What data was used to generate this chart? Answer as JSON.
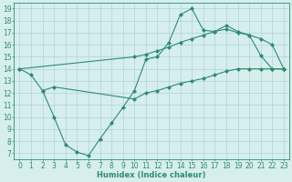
{
  "line1_x": [
    0,
    1,
    2,
    3,
    4,
    5,
    6,
    7,
    8,
    9,
    10,
    11,
    12,
    13,
    14,
    15,
    16,
    17,
    18,
    19,
    20,
    21,
    22,
    23
  ],
  "line1_y": [
    14.0,
    13.5,
    12.2,
    10.0,
    7.7,
    7.1,
    6.8,
    8.2,
    9.5,
    10.8,
    12.2,
    14.8,
    15.0,
    16.2,
    18.5,
    19.0,
    17.2,
    17.1,
    17.6,
    17.1,
    16.8,
    15.1,
    14.0,
    14.0
  ],
  "line2_x": [
    0,
    10,
    11,
    12,
    13,
    14,
    15,
    16,
    17,
    18,
    19,
    20,
    21,
    22,
    23
  ],
  "line2_y": [
    14.0,
    15.0,
    15.2,
    15.5,
    15.8,
    16.2,
    16.5,
    16.8,
    17.1,
    17.3,
    17.0,
    16.8,
    16.5,
    16.0,
    14.0
  ],
  "line3_x": [
    2,
    3,
    10,
    11,
    12,
    13,
    14,
    15,
    16,
    17,
    18,
    19,
    20,
    21,
    22,
    23
  ],
  "line3_y": [
    12.2,
    12.5,
    11.5,
    12.0,
    12.2,
    12.5,
    12.8,
    13.0,
    13.2,
    13.5,
    13.8,
    14.0,
    14.0,
    14.0,
    14.0,
    14.0
  ],
  "color": "#2e8b73",
  "bg_color": "#d6eeee",
  "grid_color": "#b0d4d4",
  "xlabel": "Humidex (Indice chaleur)",
  "xlim": [
    -0.5,
    23.5
  ],
  "ylim": [
    6.5,
    19.5
  ],
  "yticks": [
    7,
    8,
    9,
    10,
    11,
    12,
    13,
    14,
    15,
    16,
    17,
    18,
    19
  ],
  "xticks": [
    0,
    1,
    2,
    3,
    4,
    5,
    6,
    7,
    8,
    9,
    10,
    11,
    12,
    13,
    14,
    15,
    16,
    17,
    18,
    19,
    20,
    21,
    22,
    23
  ],
  "axis_fontsize": 6,
  "tick_fontsize": 5.5
}
